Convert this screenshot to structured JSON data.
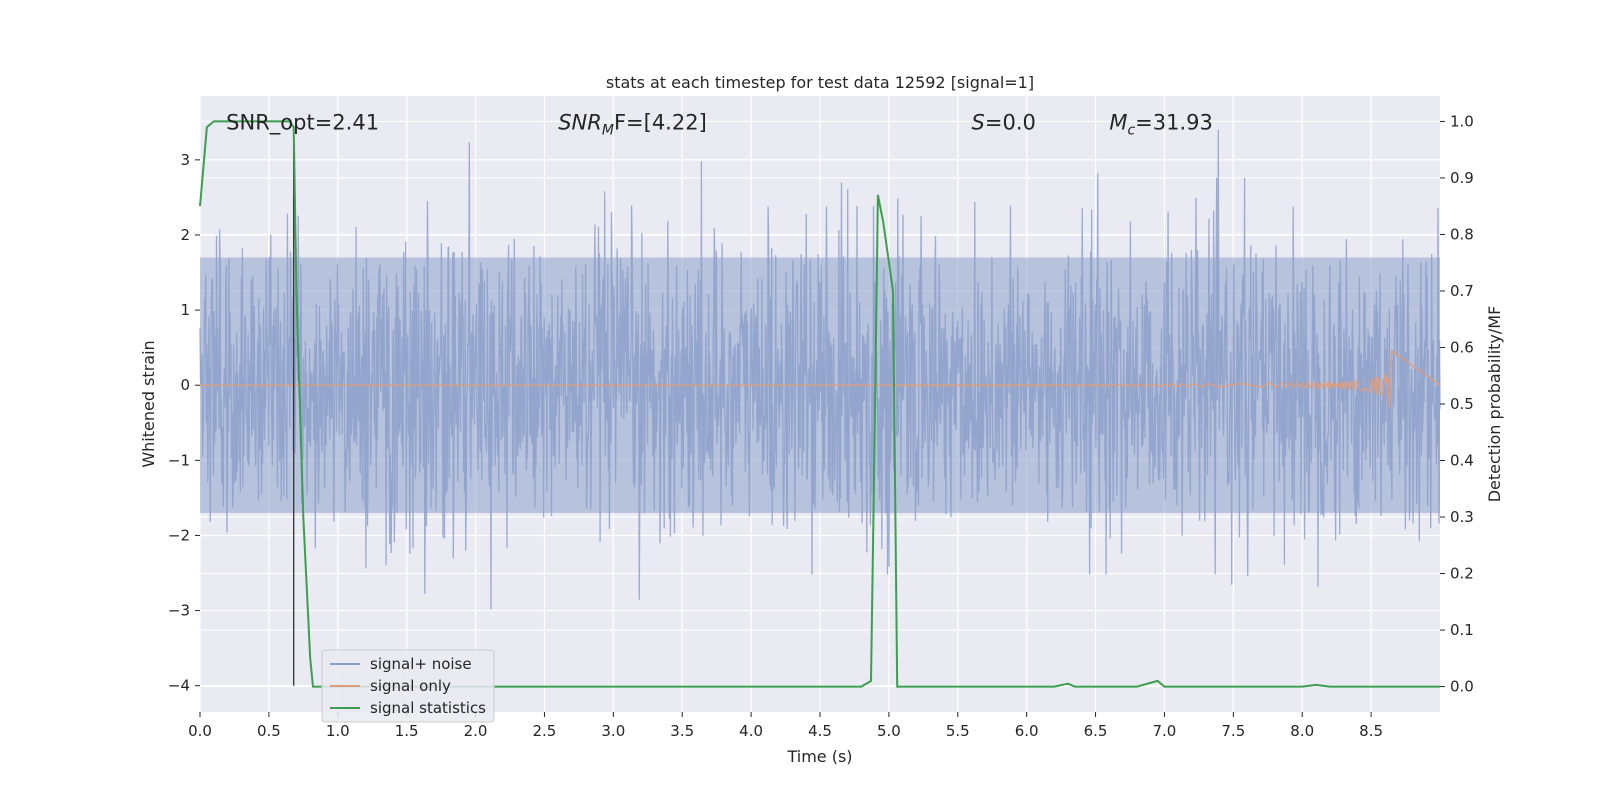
{
  "chart_data": {
    "type": "line",
    "title": "stats at each timestep for test data 12592 [signal=1]",
    "xlabel": "Time (s)",
    "ylabel": "Whitened strain",
    "y2label": "Detection probability/MF",
    "xlim": [
      0.0,
      9.0
    ],
    "ylim": [
      -4.35,
      3.85
    ],
    "y2lim": [
      -0.045,
      1.045
    ],
    "xticks": [
      0.0,
      0.5,
      1.0,
      1.5,
      2.0,
      2.5,
      3.0,
      3.5,
      4.0,
      4.5,
      5.0,
      5.5,
      6.0,
      6.5,
      7.0,
      7.5,
      8.0,
      8.5
    ],
    "xtick_labels": [
      "0.0",
      "0.5",
      "1.0",
      "1.5",
      "2.0",
      "2.5",
      "3.0",
      "3.5",
      "4.0",
      "4.5",
      "5.0",
      "5.5",
      "6.0",
      "6.5",
      "7.0",
      "7.5",
      "8.0",
      "8.5"
    ],
    "yticks": [
      -4,
      -3,
      -2,
      -1,
      0,
      1,
      2,
      3
    ],
    "ytick_labels": [
      "−4",
      "−3",
      "−2",
      "−1",
      "0",
      "1",
      "2",
      "3"
    ],
    "y2ticks": [
      0.0,
      0.1,
      0.2,
      0.3,
      0.4,
      0.5,
      0.6,
      0.7,
      0.8,
      0.9,
      1.0
    ],
    "y2tick_labels": [
      "0.0",
      "0.1",
      "0.2",
      "0.3",
      "0.4",
      "0.5",
      "0.6",
      "0.7",
      "0.8",
      "0.9",
      "1.0"
    ],
    "grid": true,
    "legend_position": "lower-left",
    "annotations": [
      {
        "id": "snr-opt",
        "text": "SNR_opt=2.41",
        "x": 0.19,
        "y": 3.5
      },
      {
        "id": "snr-mf",
        "text": "SNR",
        "sub": "M",
        "rest": "F=[4.22]",
        "x": 2.6,
        "y": 3.5
      },
      {
        "id": "s-value",
        "text": "S",
        "rest": "=0.0",
        "x": 5.6,
        "y": 3.5
      },
      {
        "id": "mc-value",
        "text": "M",
        "sub": "c",
        "rest": "=31.93",
        "x": 6.6,
        "y": 3.5
      }
    ],
    "vline": {
      "x": 0.68,
      "ymin": -4.0,
      "ymax": 3.4,
      "color": "#333333"
    },
    "series": [
      {
        "name": "signal+ noise",
        "color": "#8da0cb",
        "axis": "left",
        "kind": "noise",
        "duration": 9.0,
        "typical_amplitude": 1.7,
        "peak_amplitude": 3.4
      },
      {
        "name": "signal only",
        "color": "#dd9e7e",
        "axis": "left",
        "kind": "chirp",
        "start": 5.0,
        "merger": 8.65,
        "peak_amplitude": 0.55
      },
      {
        "name": "signal statistics",
        "color": "#3c9e4f",
        "axis": "right",
        "kind": "line",
        "x": [
          0.0,
          0.05,
          0.1,
          0.2,
          0.3,
          0.5,
          0.65,
          0.68,
          0.7,
          0.75,
          0.8,
          0.82,
          4.8,
          4.87,
          4.9,
          4.92,
          4.96,
          5.03,
          5.06,
          6.2,
          6.3,
          6.35,
          6.8,
          6.95,
          7.0,
          8.0,
          8.1,
          8.2,
          9.0
        ],
        "y": [
          0.85,
          0.99,
          1.0,
          1.0,
          1.0,
          1.0,
          1.0,
          0.99,
          0.7,
          0.3,
          0.05,
          0.0,
          0.0,
          0.01,
          0.5,
          0.87,
          0.82,
          0.7,
          0.0,
          0.0,
          0.005,
          0.0,
          0.0,
          0.01,
          0.0,
          0.0,
          0.003,
          0.0,
          0.0
        ]
      }
    ]
  }
}
